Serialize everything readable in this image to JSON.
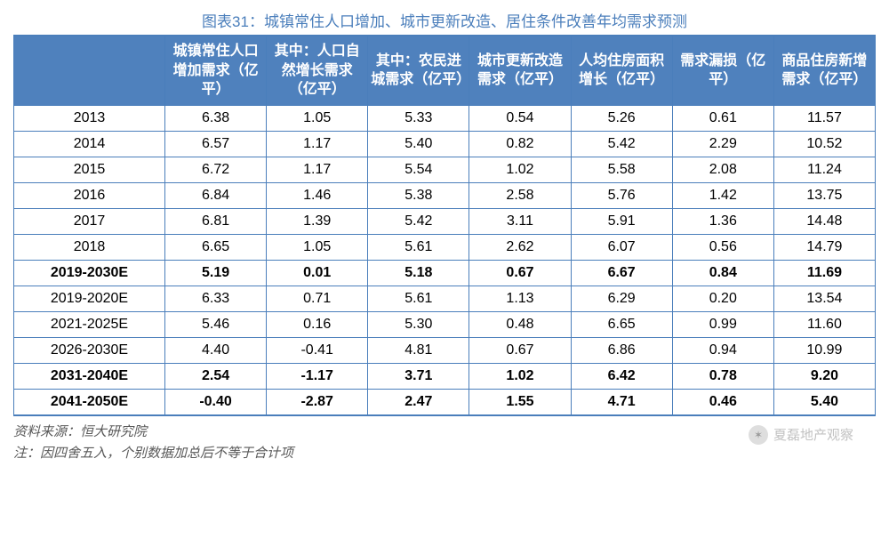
{
  "title": "图表31：城镇常住人口增加、城市更新改造、居住条件改善年均需求预测",
  "columns": [
    "",
    "城镇常住人口增加需求（亿平）",
    "其中：人口自然增长需求（亿平）",
    "其中：农民进城需求（亿平）",
    "城市更新改造需求（亿平）",
    "人均住房面积增长（亿平）",
    "需求漏损（亿平）",
    "商品住房新增需求（亿平）"
  ],
  "col_widths": [
    "170px",
    "auto",
    "auto",
    "auto",
    "auto",
    "auto",
    "auto",
    "auto"
  ],
  "header_bg": "#4f81bd",
  "header_fg": "#ffffff",
  "border_color": "#4a7ebb",
  "rows": [
    {
      "bold": false,
      "cells": [
        "2013",
        "6.38",
        "1.05",
        "5.33",
        "0.54",
        "5.26",
        "0.61",
        "11.57"
      ]
    },
    {
      "bold": false,
      "cells": [
        "2014",
        "6.57",
        "1.17",
        "5.40",
        "0.82",
        "5.42",
        "2.29",
        "10.52"
      ]
    },
    {
      "bold": false,
      "cells": [
        "2015",
        "6.72",
        "1.17",
        "5.54",
        "1.02",
        "5.58",
        "2.08",
        "11.24"
      ]
    },
    {
      "bold": false,
      "cells": [
        "2016",
        "6.84",
        "1.46",
        "5.38",
        "2.58",
        "5.76",
        "1.42",
        "13.75"
      ]
    },
    {
      "bold": false,
      "cells": [
        "2017",
        "6.81",
        "1.39",
        "5.42",
        "3.11",
        "5.91",
        "1.36",
        "14.48"
      ]
    },
    {
      "bold": false,
      "cells": [
        "2018",
        "6.65",
        "1.05",
        "5.61",
        "2.62",
        "6.07",
        "0.56",
        "14.79"
      ]
    },
    {
      "bold": true,
      "cells": [
        "2019-2030E",
        "5.19",
        "0.01",
        "5.18",
        "0.67",
        "6.67",
        "0.84",
        "11.69"
      ]
    },
    {
      "bold": false,
      "cells": [
        "2019-2020E",
        "6.33",
        "0.71",
        "5.61",
        "1.13",
        "6.29",
        "0.20",
        "13.54"
      ]
    },
    {
      "bold": false,
      "cells": [
        "2021-2025E",
        "5.46",
        "0.16",
        "5.30",
        "0.48",
        "6.65",
        "0.99",
        "11.60"
      ]
    },
    {
      "bold": false,
      "cells": [
        "2026-2030E",
        "4.40",
        "-0.41",
        "4.81",
        "0.67",
        "6.86",
        "0.94",
        "10.99"
      ]
    },
    {
      "bold": true,
      "cells": [
        "2031-2040E",
        "2.54",
        "-1.17",
        "3.71",
        "1.02",
        "6.42",
        "0.78",
        "9.20"
      ]
    },
    {
      "bold": true,
      "cells": [
        "2041-2050E",
        "-0.40",
        "-2.87",
        "2.47",
        "1.55",
        "4.71",
        "0.46",
        "5.40"
      ]
    }
  ],
  "source_label": "资料来源：恒大研究院",
  "note_label": "注：因四舍五入，个别数据加总后不等于合计项",
  "watermark_text": "夏磊地产观察",
  "watermark_icon_label": "wechat-icon"
}
